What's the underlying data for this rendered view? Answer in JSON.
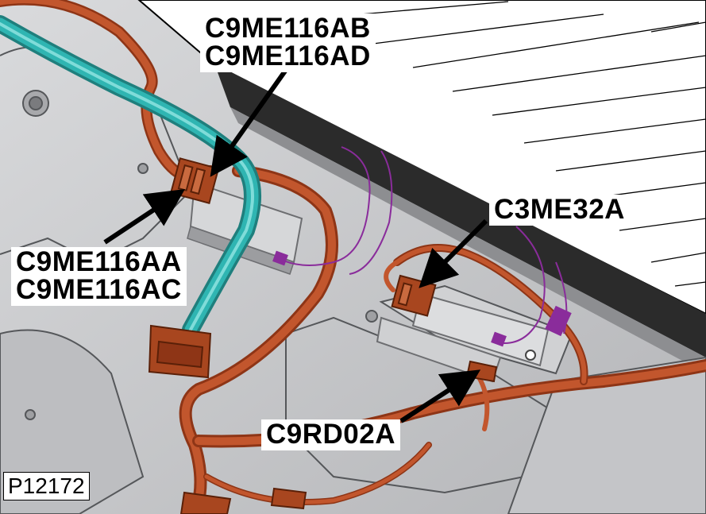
{
  "figure": {
    "id": "P12172"
  },
  "callouts": {
    "upper_left": {
      "line1": "C9ME116AB",
      "line2": "C9ME116AD"
    },
    "lower_left": {
      "line1": "C9ME116AA",
      "line2": "C9ME116AC"
    },
    "right": {
      "line1": "C3ME32A"
    },
    "bottom": {
      "line1": "C9RD02A"
    }
  },
  "colors": {
    "harness_copper": "#c2562d",
    "harness_teal": "#2fb5b2",
    "connector_brown": "#a8461f",
    "wire_purple": "#8a2c9b",
    "body_gray": "#c9cacc",
    "dark_panel": "#2b2b2b"
  },
  "icons": [
    "arrow-icon"
  ]
}
